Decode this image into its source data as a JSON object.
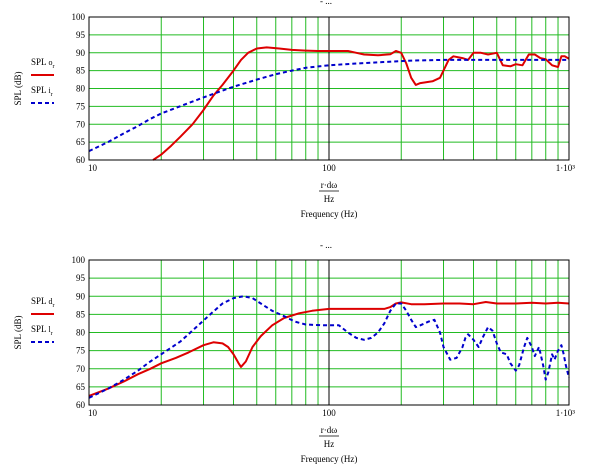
{
  "chart_data": [
    {
      "type": "line",
      "xscale": "log",
      "xlim": [
        10,
        1000
      ],
      "ylim": [
        60,
        100
      ],
      "x_ticks": [
        "10",
        "100",
        "1·10³"
      ],
      "y_ticks": [
        "60",
        "65",
        "70",
        "75",
        "80",
        "85",
        "90",
        "95",
        "100"
      ],
      "ylabel": "SPL (dB)",
      "xlabel_top": "r·dω",
      "xlabel_mid": "Hz",
      "xlabel": "Frequency (Hz)",
      "grid": true,
      "legend": "left",
      "series": [
        {
          "name": "SPL o_r",
          "color": "#dd0000",
          "dash": "solid",
          "points": [
            [
              18.5,
              60
            ],
            [
              20,
              61.5
            ],
            [
              22,
              64
            ],
            [
              24,
              66.5
            ],
            [
              27,
              70
            ],
            [
              30,
              74
            ],
            [
              33,
              78
            ],
            [
              36,
              81
            ],
            [
              40,
              85
            ],
            [
              43,
              88
            ],
            [
              46,
              90
            ],
            [
              50,
              91.2
            ],
            [
              55,
              91.5
            ],
            [
              62,
              91.2
            ],
            [
              70,
              90.8
            ],
            [
              80,
              90.6
            ],
            [
              90,
              90.5
            ],
            [
              100,
              90.5
            ],
            [
              110,
              90.5
            ],
            [
              120,
              90.5
            ],
            [
              130,
              90
            ],
            [
              140,
              89.5
            ],
            [
              160,
              89.3
            ],
            [
              180,
              89.6
            ],
            [
              190,
              90.5
            ],
            [
              200,
              90
            ],
            [
              210,
              87
            ],
            [
              220,
              83
            ],
            [
              230,
              81
            ],
            [
              240,
              81.5
            ],
            [
              270,
              82
            ],
            [
              290,
              83
            ],
            [
              300,
              85
            ],
            [
              315,
              88
            ],
            [
              330,
              89
            ],
            [
              360,
              88.5
            ],
            [
              380,
              88
            ],
            [
              400,
              90
            ],
            [
              430,
              90
            ],
            [
              460,
              89.5
            ],
            [
              500,
              90
            ],
            [
              530,
              86.5
            ],
            [
              570,
              86.2
            ],
            [
              600,
              86.8
            ],
            [
              640,
              86.5
            ],
            [
              680,
              89.5
            ],
            [
              720,
              89.5
            ],
            [
              760,
              88.5
            ],
            [
              800,
              88.2
            ],
            [
              850,
              86.5
            ],
            [
              900,
              86
            ],
            [
              930,
              89
            ],
            [
              960,
              89
            ],
            [
              1000,
              88.3
            ]
          ]
        },
        {
          "name": "SPL i_r",
          "color": "#0000cc",
          "dash": "dashed",
          "points": [
            [
              10,
              62.5
            ],
            [
              12,
              65
            ],
            [
              14,
              67.5
            ],
            [
              16,
              69.5
            ],
            [
              18,
              71.5
            ],
            [
              20,
              73
            ],
            [
              25,
              75.5
            ],
            [
              30,
              77.5
            ],
            [
              40,
              80.5
            ],
            [
              50,
              82.5
            ],
            [
              60,
              84
            ],
            [
              70,
              85
            ],
            [
              80,
              85.8
            ],
            [
              100,
              86.5
            ],
            [
              130,
              87
            ],
            [
              170,
              87.4
            ],
            [
              220,
              87.8
            ],
            [
              300,
              88
            ],
            [
              400,
              88
            ],
            [
              600,
              88
            ],
            [
              800,
              88
            ],
            [
              1000,
              88
            ]
          ]
        }
      ]
    },
    {
      "type": "line",
      "xscale": "log",
      "xlim": [
        10,
        1000
      ],
      "ylim": [
        60,
        100
      ],
      "x_ticks": [
        "10",
        "100",
        "1·10³"
      ],
      "y_ticks": [
        "60",
        "65",
        "70",
        "75",
        "80",
        "85",
        "90",
        "95",
        "100"
      ],
      "ylabel": "SPL (dB)",
      "xlabel_top": "r·dω",
      "xlabel_mid": "Hz",
      "xlabel": "Frequency (Hz)",
      "grid": true,
      "legend": "left",
      "series": [
        {
          "name": "SPL d_r",
          "color": "#dd0000",
          "dash": "solid",
          "points": [
            [
              10,
              62.5
            ],
            [
              12,
              64.5
            ],
            [
              14,
              66.5
            ],
            [
              16,
              68.5
            ],
            [
              18,
              70
            ],
            [
              20,
              71.5
            ],
            [
              23,
              73
            ],
            [
              26,
              74.5
            ],
            [
              30,
              76.5
            ],
            [
              33,
              77.3
            ],
            [
              36,
              77
            ],
            [
              38,
              76
            ],
            [
              40,
              74
            ],
            [
              42,
              71.5
            ],
            [
              43,
              70.5
            ],
            [
              45,
              72
            ],
            [
              48,
              76
            ],
            [
              52,
              79
            ],
            [
              58,
              82
            ],
            [
              65,
              84
            ],
            [
              75,
              85.3
            ],
            [
              85,
              86
            ],
            [
              100,
              86.5
            ],
            [
              130,
              86.5
            ],
            [
              170,
              86.5
            ],
            [
              180,
              87
            ],
            [
              190,
              88
            ],
            [
              200,
              88.3
            ],
            [
              220,
              87.8
            ],
            [
              250,
              87.8
            ],
            [
              300,
              88
            ],
            [
              350,
              88
            ],
            [
              400,
              87.8
            ],
            [
              450,
              88.4
            ],
            [
              500,
              88
            ],
            [
              600,
              88
            ],
            [
              700,
              88.2
            ],
            [
              800,
              88
            ],
            [
              900,
              88.2
            ],
            [
              1000,
              88
            ]
          ]
        },
        {
          "name": "SPL l_r",
          "color": "#0000cc",
          "dash": "dashed",
          "points": [
            [
              10,
              62
            ],
            [
              12,
              64.5
            ],
            [
              14,
              67
            ],
            [
              16,
              69.5
            ],
            [
              18,
              72
            ],
            [
              20,
              74
            ],
            [
              24,
              77.5
            ],
            [
              28,
              81.5
            ],
            [
              32,
              85
            ],
            [
              36,
              88
            ],
            [
              40,
              89.5
            ],
            [
              44,
              90
            ],
            [
              48,
              89.5
            ],
            [
              52,
              88
            ],
            [
              58,
              86
            ],
            [
              65,
              84.5
            ],
            [
              72,
              83
            ],
            [
              80,
              82.2
            ],
            [
              95,
              82
            ],
            [
              110,
              82
            ],
            [
              120,
              80
            ],
            [
              130,
              78.5
            ],
            [
              140,
              78
            ],
            [
              150,
              78.5
            ],
            [
              160,
              80
            ],
            [
              170,
              82.5
            ],
            [
              180,
              86
            ],
            [
              190,
              88
            ],
            [
              200,
              88
            ],
            [
              210,
              86
            ],
            [
              220,
              83.5
            ],
            [
              230,
              81.5
            ],
            [
              240,
              82
            ],
            [
              260,
              83
            ],
            [
              275,
              83.5
            ],
            [
              290,
              80
            ],
            [
              300,
              76
            ],
            [
              320,
              72.5
            ],
            [
              340,
              73
            ],
            [
              360,
              76
            ],
            [
              370,
              78.5
            ],
            [
              380,
              79.5
            ],
            [
              400,
              78
            ],
            [
              420,
              76
            ],
            [
              440,
              79
            ],
            [
              460,
              81.5
            ],
            [
              480,
              80.5
            ],
            [
              500,
              77
            ],
            [
              520,
              74.5
            ],
            [
              550,
              74
            ],
            [
              570,
              71.5
            ],
            [
              600,
              69.5
            ],
            [
              620,
              71
            ],
            [
              650,
              76
            ],
            [
              670,
              78.5
            ],
            [
              700,
              76
            ],
            [
              720,
              73.5
            ],
            [
              750,
              76
            ],
            [
              780,
              71
            ],
            [
              800,
              67
            ],
            [
              820,
              69
            ],
            [
              850,
              74
            ],
            [
              870,
              72.5
            ],
            [
              900,
              75
            ],
            [
              930,
              76.5
            ],
            [
              950,
              74
            ],
            [
              970,
              71
            ],
            [
              1000,
              67.5
            ]
          ]
        }
      ]
    }
  ]
}
